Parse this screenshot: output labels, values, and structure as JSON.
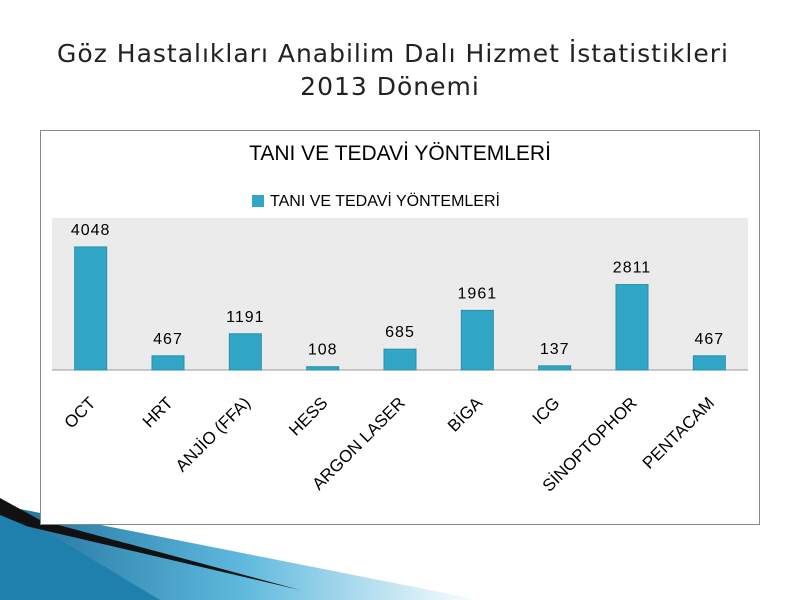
{
  "slide": {
    "title": [
      "Göz Hastalıkları Anabilim Dalı Hizmet İstatistikleri",
      "2013 Dönemi"
    ]
  },
  "chart_data": {
    "type": "bar",
    "title": "TANI VE TEDAVİ YÖNTEMLERİ",
    "categories": [
      "OCT",
      "HRT",
      "ANJİO (FFA)",
      "HESS",
      "ARGON LASER",
      "BİGA",
      "ICG",
      "SİNOPTOPHOR",
      "PENTACAM"
    ],
    "series": [
      {
        "name": "TANI VE TEDAVİ YÖNTEMLERİ",
        "color": "#31a6c6",
        "values": [
          4048,
          467,
          1191,
          108,
          685,
          1961,
          137,
          2811,
          467
        ]
      }
    ],
    "ylim": [
      0,
      5000
    ],
    "legend": "top",
    "data_labels": true
  }
}
